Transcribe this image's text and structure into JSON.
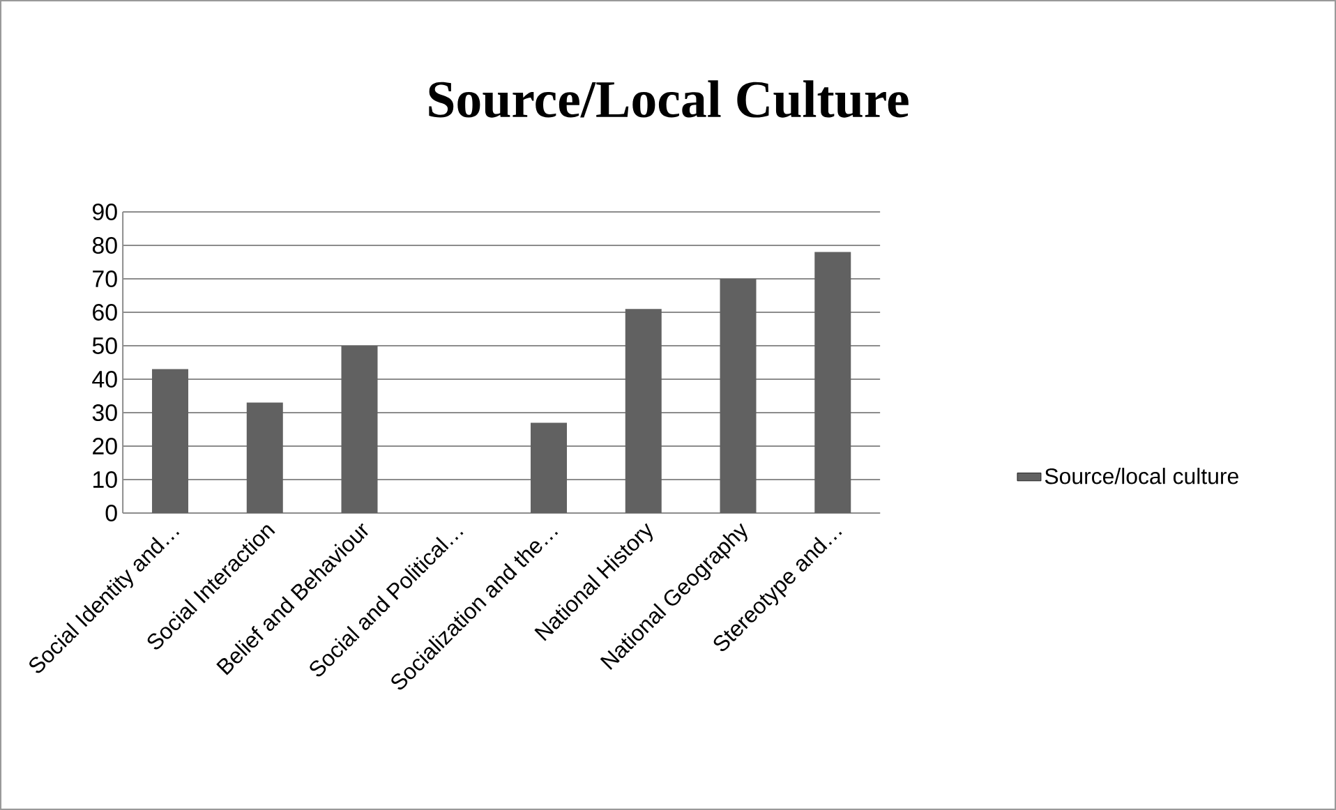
{
  "chart_data": {
    "type": "bar",
    "title": "Source/Local Culture",
    "categories": [
      "Social Identity and…",
      "Social Interaction",
      "Belief and Behaviour",
      "Social and Political…",
      "Socialization and the…",
      "National History",
      "National Geography",
      "Stereotype and…"
    ],
    "series": [
      {
        "name": "Source/local culture",
        "color": "#616161",
        "values": [
          43,
          33,
          50,
          0,
          27,
          61,
          70,
          78
        ]
      }
    ],
    "ylim": [
      0,
      90
    ],
    "yticks": [
      0,
      10,
      20,
      30,
      40,
      50,
      60,
      70,
      80,
      90
    ],
    "grid": "y",
    "legend": "right"
  }
}
